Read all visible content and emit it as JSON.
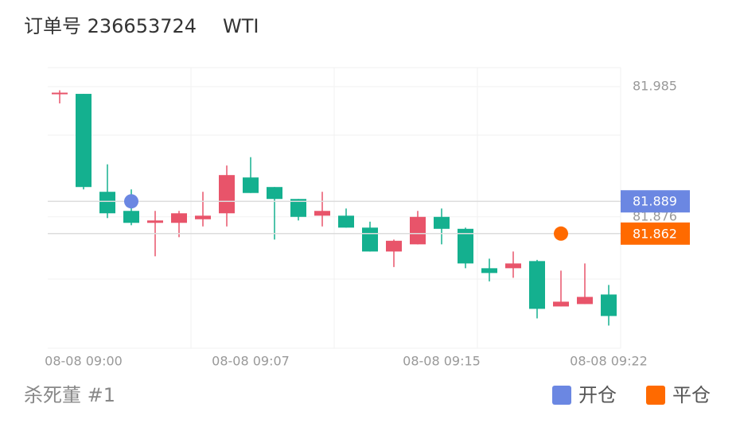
{
  "chart_data": {
    "type": "candlestick",
    "title": "订单号 236653724",
    "subtitle": "WTI",
    "footer": "杀死董 #1",
    "categories": [
      null,
      "08-08 09:00",
      null,
      null,
      null,
      null,
      null,
      null,
      "08-08 09:07",
      null,
      null,
      null,
      null,
      null,
      null,
      null,
      "08-08 09:15",
      null,
      null,
      null,
      null,
      null,
      null,
      "08-08 09:22"
    ],
    "open": [
      81.979,
      81.979,
      81.897,
      81.881,
      81.871,
      81.871,
      81.874,
      81.879,
      81.909,
      81.901,
      81.891,
      81.877,
      81.877,
      81.867,
      81.847,
      81.853,
      81.876,
      81.866,
      81.833,
      81.833,
      81.839,
      81.801,
      81.803,
      81.811
    ],
    "high": [
      81.982,
      81.979,
      81.92,
      81.899,
      81.881,
      81.881,
      81.897,
      81.919,
      81.926,
      81.901,
      81.891,
      81.897,
      81.883,
      81.872,
      81.857,
      81.881,
      81.883,
      81.867,
      81.841,
      81.847,
      81.84,
      81.831,
      81.837,
      81.819
    ],
    "low": [
      81.971,
      81.899,
      81.875,
      81.869,
      81.843,
      81.859,
      81.868,
      81.868,
      81.896,
      81.857,
      81.873,
      81.868,
      81.867,
      81.847,
      81.834,
      81.853,
      81.853,
      81.833,
      81.822,
      81.825,
      81.791,
      81.801,
      81.803,
      81.785
    ],
    "close": [
      81.98,
      81.901,
      81.879,
      81.871,
      81.873,
      81.879,
      81.877,
      81.911,
      81.896,
      81.891,
      81.876,
      81.881,
      81.867,
      81.847,
      81.856,
      81.876,
      81.866,
      81.837,
      81.829,
      81.837,
      81.799,
      81.805,
      81.809,
      81.793
    ],
    "up_color": "#e8546a",
    "down_color": "#14b08f",
    "series": [
      {
        "name": "开仓",
        "color": "#6b87e2",
        "values": [
          null,
          null,
          null,
          81.889,
          null,
          null,
          null,
          null,
          null,
          null,
          null,
          null,
          null,
          null,
          null,
          null,
          null,
          null,
          null,
          null,
          null,
          null,
          null,
          null
        ]
      },
      {
        "name": "平仓",
        "color": "#ff6a00",
        "values": [
          null,
          null,
          null,
          null,
          null,
          null,
          null,
          null,
          null,
          null,
          null,
          null,
          null,
          null,
          null,
          null,
          null,
          null,
          null,
          null,
          null,
          81.862,
          null,
          null
        ]
      }
    ],
    "ylim": [
      81.766,
      82.001
    ],
    "yticks": [
      81.985,
      81.876
    ],
    "grid": true
  }
}
